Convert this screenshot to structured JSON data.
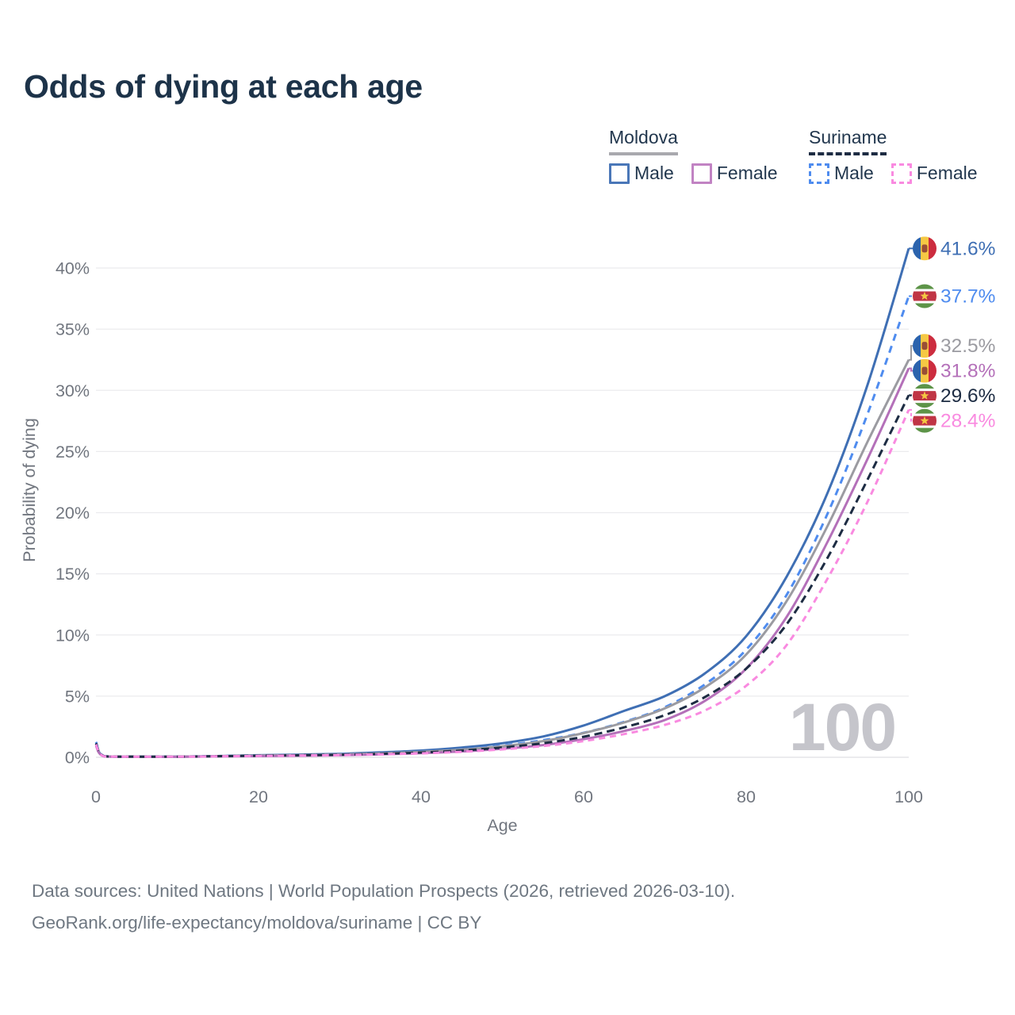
{
  "title": "Odds of dying at each age",
  "watermark": "100",
  "legend": {
    "groups": [
      {
        "name": "Moldova",
        "style": "solid",
        "underline_color": "#a9a9ae",
        "items": [
          {
            "label": "Male",
            "color": "#4a77b8"
          },
          {
            "label": "Female",
            "color": "#c183c3"
          }
        ]
      },
      {
        "name": "Suriname",
        "style": "dashed",
        "underline_color": "#1d2c43",
        "items": [
          {
            "label": "Male",
            "color": "#4f8cef"
          },
          {
            "label": "Female",
            "color": "#f98ae0"
          }
        ]
      }
    ]
  },
  "footer": {
    "line1": "Data sources: United Nations | World Population Prospects (2026, retrieved 2026-03-10).",
    "line2": "GeoRank.org/life-expectancy/moldova/suriname | CC BY"
  },
  "chart_data": {
    "type": "line",
    "title": "Odds of dying at each age",
    "xlabel": "Age",
    "ylabel": "Probability of dying",
    "xlim": [
      0,
      100
    ],
    "ylim": [
      0,
      43
    ],
    "x_ticks": [
      0,
      20,
      40,
      60,
      80,
      100
    ],
    "y_ticks": [
      0,
      5,
      10,
      15,
      20,
      25,
      30,
      35,
      40
    ],
    "y_tick_suffix": "%",
    "grid": true,
    "legend_position": "top-right",
    "hover_age_indicator": "100",
    "x": [
      0,
      1,
      5,
      10,
      15,
      20,
      25,
      30,
      35,
      40,
      45,
      50,
      55,
      60,
      65,
      70,
      75,
      80,
      85,
      90,
      95,
      100
    ],
    "series": [
      {
        "id": "moldova-male",
        "name": "Moldova Male",
        "country": "Moldova",
        "sex": "Male",
        "color": "#3f6fb4",
        "dash": "solid",
        "flag": "moldova",
        "end_label": "41.6%",
        "values": [
          1.1,
          0.09,
          0.05,
          0.05,
          0.1,
          0.17,
          0.22,
          0.28,
          0.4,
          0.55,
          0.8,
          1.15,
          1.7,
          2.6,
          3.8,
          5.0,
          6.9,
          9.9,
          14.8,
          21.6,
          30.6,
          41.6
        ]
      },
      {
        "id": "suriname-male",
        "name": "Suriname Male",
        "country": "Suriname",
        "sex": "Male",
        "color": "#4f8cef",
        "dash": "9 7",
        "flag": "suriname",
        "end_label": "37.7%",
        "values": [
          1.25,
          0.1,
          0.06,
          0.06,
          0.1,
          0.15,
          0.19,
          0.24,
          0.33,
          0.45,
          0.65,
          0.95,
          1.4,
          2.0,
          2.9,
          4.1,
          6.0,
          8.8,
          13.3,
          19.9,
          28.2,
          37.7
        ]
      },
      {
        "id": "moldova-both",
        "name": "Moldova",
        "country": "Moldova",
        "sex": "Both",
        "color": "#9b9ba1",
        "dash": "solid",
        "flag": "moldova",
        "end_label": "32.5%",
        "values": [
          1.0,
          0.08,
          0.05,
          0.05,
          0.09,
          0.14,
          0.18,
          0.23,
          0.32,
          0.44,
          0.62,
          0.9,
          1.32,
          1.98,
          2.85,
          4.0,
          5.75,
          8.4,
          12.8,
          18.9,
          25.9,
          32.5
        ]
      },
      {
        "id": "moldova-female",
        "name": "Moldova Female",
        "country": "Moldova",
        "sex": "Female",
        "color": "#b470b9",
        "dash": "solid",
        "flag": "moldova",
        "end_label": "31.8%",
        "values": [
          0.95,
          0.07,
          0.04,
          0.04,
          0.07,
          0.1,
          0.13,
          0.17,
          0.24,
          0.34,
          0.48,
          0.7,
          1.0,
          1.48,
          2.15,
          3.05,
          4.65,
          7.25,
          11.5,
          17.6,
          24.5,
          31.8
        ]
      },
      {
        "id": "suriname-both",
        "name": "Suriname",
        "country": "Suriname",
        "sex": "Both",
        "color": "#1d2c43",
        "dash": "10 6",
        "flag": "suriname",
        "end_label": "29.6%",
        "values": [
          1.15,
          0.09,
          0.05,
          0.05,
          0.09,
          0.13,
          0.16,
          0.21,
          0.28,
          0.39,
          0.55,
          0.8,
          1.15,
          1.68,
          2.45,
          3.45,
          4.95,
          7.25,
          10.9,
          16.3,
          22.8,
          29.6
        ]
      },
      {
        "id": "suriname-female",
        "name": "Suriname Female",
        "country": "Suriname",
        "sex": "Female",
        "color": "#f98ae0",
        "dash": "8 6",
        "flag": "suriname",
        "end_label": "28.4%",
        "values": [
          1.05,
          0.08,
          0.05,
          0.05,
          0.08,
          0.11,
          0.14,
          0.18,
          0.24,
          0.32,
          0.45,
          0.65,
          0.92,
          1.32,
          1.9,
          2.65,
          3.85,
          5.85,
          9.2,
          14.6,
          21.0,
          28.4
        ]
      }
    ]
  }
}
